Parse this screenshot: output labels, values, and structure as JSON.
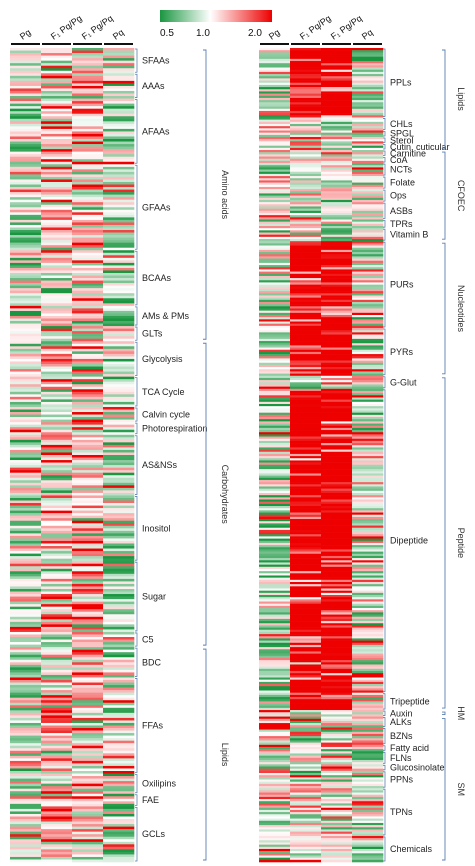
{
  "chart_data": {
    "type": "heatmap",
    "color_scale": {
      "min": 0.5,
      "mid": 1.0,
      "max": 2.0,
      "ticks": [
        "0.5",
        "1.0",
        "2.0"
      ],
      "colors": {
        "low": "#1a9641",
        "mid": "#ffffff",
        "high": "#ee0000"
      }
    },
    "panels": [
      {
        "id": "left",
        "columns": [
          "Pg",
          "F₁ Pq/Pg",
          "F₁ Pg/Pq",
          "Pq"
        ],
        "row_groups": [
          {
            "label": "SFAAs",
            "rows": 10
          },
          {
            "label": "AAAs",
            "rows": 10
          },
          {
            "label": "AFAAs",
            "rows": 26
          },
          {
            "label": "GFAAs",
            "rows": 34
          },
          {
            "label": "BCAAs",
            "rows": 22
          },
          {
            "label": "AMs & PMs",
            "rows": 8
          },
          {
            "label": "GLTs",
            "rows": 6
          },
          {
            "label": "Glycolysis",
            "rows": 14
          },
          {
            "label": "TCA Cycle",
            "rows": 12
          },
          {
            "label": "Calvin cycle",
            "rows": 6
          },
          {
            "label": "Photorespiration",
            "rows": 5
          },
          {
            "label": "AS&NSs",
            "rows": 24
          },
          {
            "label": "Inositol",
            "rows": 26
          },
          {
            "label": "Sugar",
            "rows": 28
          },
          {
            "label": "C5",
            "rows": 6
          },
          {
            "label": "BDC",
            "rows": 12
          },
          {
            "label": "FFAs",
            "rows": 38
          },
          {
            "label": "Oxilipins",
            "rows": 8
          },
          {
            "label": "FAE",
            "rows": 5
          },
          {
            "label": "GCLs",
            "rows": 22
          }
        ],
        "classes": [
          {
            "label": "Amino acids",
            "from": "SFAAs",
            "to": "GLTs"
          },
          {
            "label": "Carbohydrates",
            "from": "Glycolysis",
            "to": "C5"
          },
          {
            "label": "Lipids",
            "from": "BDC",
            "to": "GCLs"
          }
        ]
      },
      {
        "id": "right",
        "columns": [
          "Pg",
          "F₁ Pq/Pg",
          "F₁ Pg/Pq",
          "Pq"
        ],
        "row_groups": [
          {
            "label": "PPLs",
            "rows": 32
          },
          {
            "label": "CHLs",
            "rows": 6
          },
          {
            "label": "SPGL",
            "rows": 3
          },
          {
            "label": "Sterol",
            "rows": 3
          },
          {
            "label": "Cutin, cuticular",
            "rows": 3
          },
          {
            "label": "Carnitine",
            "rows": 3
          },
          {
            "label": "CoA",
            "rows": 3
          },
          {
            "label": "NCTs",
            "rows": 6
          },
          {
            "label": "Folate",
            "rows": 6
          },
          {
            "label": "Ops",
            "rows": 6
          },
          {
            "label": "ASBs",
            "rows": 8
          },
          {
            "label": "TPRs",
            "rows": 4
          },
          {
            "label": "Vitamin B",
            "rows": 6
          },
          {
            "label": "PURs",
            "rows": 40
          },
          {
            "label": "PYRs",
            "rows": 22
          },
          {
            "label": "G-Glut",
            "rows": 6
          },
          {
            "label": "Dipeptide",
            "rows": 140
          },
          {
            "label": "Tripeptide",
            "rows": 8
          },
          {
            "label": "Auxin",
            "rows": 3
          },
          {
            "label": "ALKs",
            "rows": 5
          },
          {
            "label": "BZNs",
            "rows": 8
          },
          {
            "label": "Fatty acid",
            "rows": 3
          },
          {
            "label": "FLNs",
            "rows": 6
          },
          {
            "label": "Glucosinolate",
            "rows": 3
          },
          {
            "label": "PPNs",
            "rows": 8
          },
          {
            "label": "TPNs",
            "rows": 22
          },
          {
            "label": "Chemicals",
            "rows": 12
          }
        ],
        "classes": [
          {
            "label": "Lipids",
            "from": "PPLs",
            "to": "Cutin, cuticular"
          },
          {
            "label": "CFOEC",
            "from": "Carnitine",
            "to": "Vitamin B"
          },
          {
            "label": "Nucleotides",
            "from": "PURs",
            "to": "PYRs"
          },
          {
            "label": "Peptide",
            "from": "G-Glut",
            "to": "Tripeptide"
          },
          {
            "label": "HM",
            "from": "Auxin",
            "to": "Auxin"
          },
          {
            "label": "SM",
            "from": "ALKs",
            "to": "Chemicals"
          }
        ]
      }
    ]
  }
}
